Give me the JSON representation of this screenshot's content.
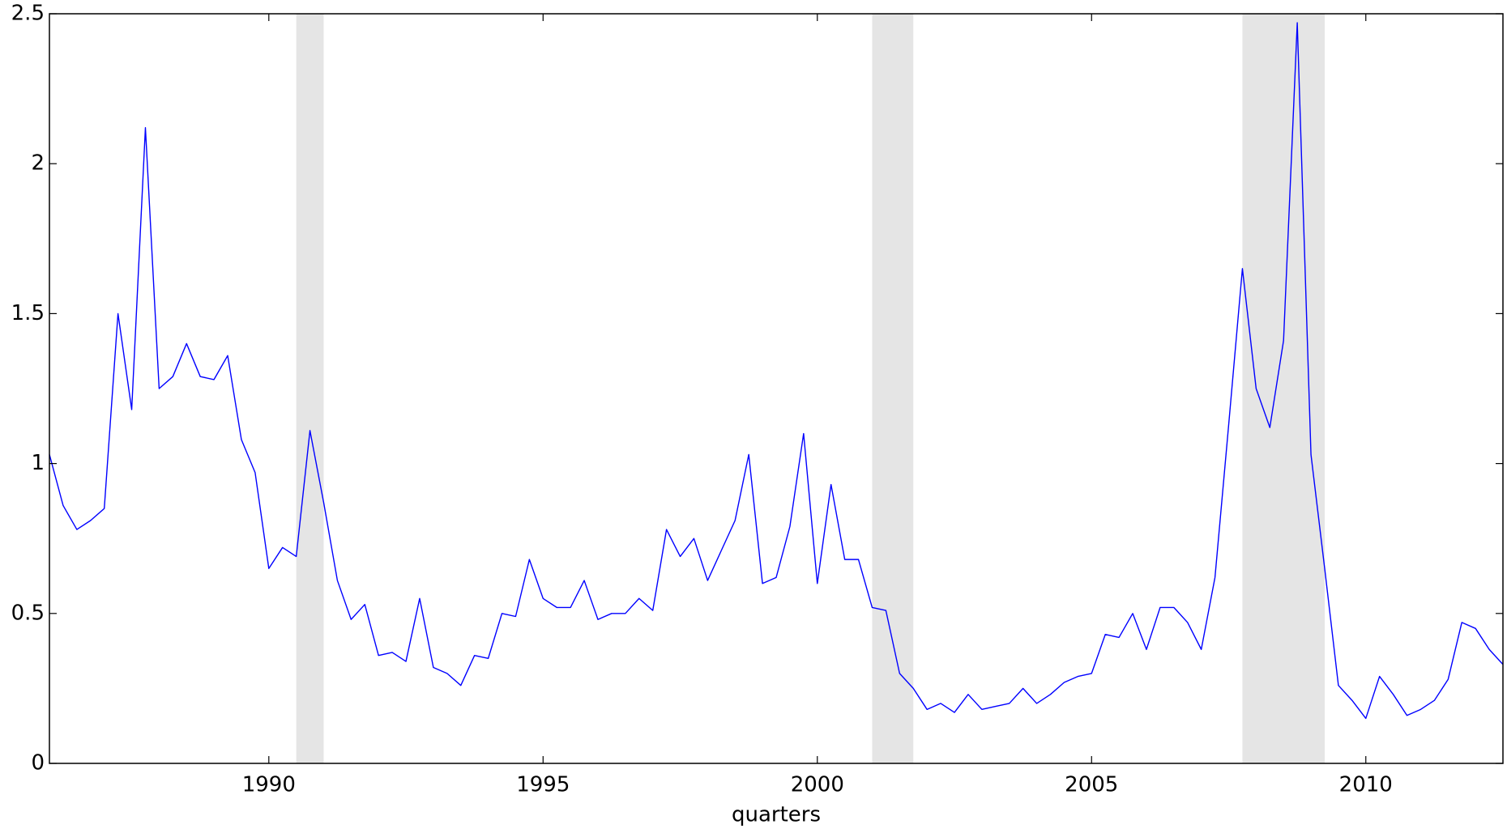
{
  "chart_data": {
    "type": "line",
    "x_label": "quarters",
    "xlim": [
      1986,
      2012.5
    ],
    "xticks": [
      1990,
      1995,
      2000,
      2005,
      2010
    ],
    "ylim": [
      0,
      2.5
    ],
    "yticks": [
      0,
      0.5,
      1,
      1.5,
      2,
      2.5
    ],
    "grid": false,
    "shade_color": "#e5e5e5",
    "shaded_regions": [
      [
        1990.5,
        1991
      ],
      [
        2001,
        2001.75
      ],
      [
        2007.75,
        2009.25
      ]
    ],
    "x": [
      1986,
      1986.25,
      1986.5,
      1986.75,
      1987,
      1987.25,
      1987.5,
      1987.75,
      1988,
      1988.25,
      1988.5,
      1988.75,
      1989,
      1989.25,
      1989.5,
      1989.75,
      1990,
      1990.25,
      1990.5,
      1990.75,
      1991,
      1991.25,
      1991.5,
      1991.75,
      1992,
      1992.25,
      1992.5,
      1992.75,
      1993,
      1993.25,
      1993.5,
      1993.75,
      1994,
      1994.25,
      1994.5,
      1994.75,
      1995,
      1995.25,
      1995.5,
      1995.75,
      1996,
      1996.25,
      1996.5,
      1996.75,
      1997,
      1997.25,
      1997.5,
      1997.75,
      1998,
      1998.25,
      1998.5,
      1998.75,
      1999,
      1999.25,
      1999.5,
      1999.75,
      2000,
      2000.25,
      2000.5,
      2000.75,
      2001,
      2001.25,
      2001.5,
      2001.75,
      2002,
      2002.25,
      2002.5,
      2002.75,
      2003,
      2003.25,
      2003.5,
      2003.75,
      2004,
      2004.25,
      2004.5,
      2004.75,
      2005,
      2005.25,
      2005.5,
      2005.75,
      2006,
      2006.25,
      2006.5,
      2006.75,
      2007,
      2007.25,
      2007.5,
      2007.75,
      2008,
      2008.25,
      2008.5,
      2008.75,
      2009,
      2009.25,
      2009.5,
      2009.75,
      2010,
      2010.25,
      2010.5,
      2010.75,
      2011,
      2011.25,
      2011.5,
      2011.75,
      2012,
      2012.25,
      2012.5
    ],
    "series": [
      {
        "color": "#0000ff",
        "values": [
          1.03,
          0.86,
          0.78,
          0.81,
          0.85,
          1.5,
          1.18,
          2.12,
          1.25,
          1.29,
          1.4,
          1.29,
          1.28,
          1.36,
          1.08,
          0.97,
          0.65,
          0.72,
          0.69,
          1.11,
          0.87,
          0.61,
          0.48,
          0.53,
          0.36,
          0.37,
          0.34,
          0.55,
          0.32,
          0.3,
          0.26,
          0.36,
          0.35,
          0.5,
          0.49,
          0.68,
          0.55,
          0.52,
          0.52,
          0.61,
          0.48,
          0.5,
          0.5,
          0.55,
          0.51,
          0.78,
          0.69,
          0.75,
          0.61,
          0.71,
          0.81,
          1.03,
          0.6,
          0.62,
          0.79,
          1.1,
          0.6,
          0.93,
          0.68,
          0.68,
          0.52,
          0.51,
          0.3,
          0.25,
          0.18,
          0.2,
          0.17,
          0.23,
          0.18,
          0.19,
          0.2,
          0.25,
          0.2,
          0.23,
          0.27,
          0.29,
          0.3,
          0.43,
          0.42,
          0.5,
          0.38,
          0.52,
          0.52,
          0.47,
          0.38,
          0.62,
          1.13,
          1.65,
          1.25,
          1.12,
          1.41,
          2.47,
          1.03,
          0.65,
          0.26,
          0.21,
          0.15,
          0.29,
          0.23,
          0.16,
          0.18,
          0.21,
          0.28,
          0.47,
          0.45,
          0.38,
          0.33
        ]
      }
    ]
  }
}
